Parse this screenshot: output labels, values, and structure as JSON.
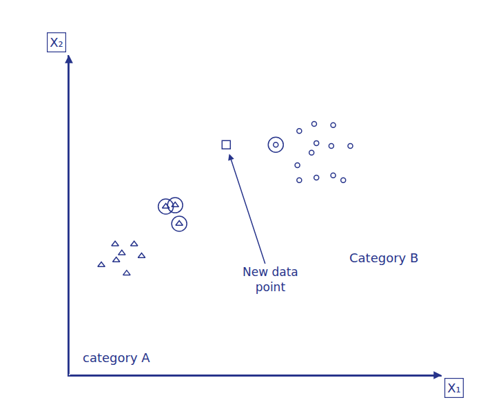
{
  "chart_data": {
    "type": "scatter",
    "xlabel": "X₁",
    "ylabel": "X₂",
    "xlim": [
      0,
      100
    ],
    "ylim": [
      0,
      100
    ],
    "xticks": [],
    "yticks": [],
    "tick_labels": false,
    "grid": false,
    "color": "#27348b",
    "series": [
      {
        "name": "category A",
        "marker": "triangle",
        "x": [
          12.4,
          17.5,
          14.2,
          19.5,
          12.7,
          8.7,
          15.5,
          26.0,
          28.5,
          29.6
        ],
        "values": [
          40.9,
          40.9,
          38.1,
          37.2,
          35.9,
          34.4,
          31.8,
          52.7,
          53.1,
          47.3
        ],
        "circled": [
          false,
          false,
          false,
          false,
          false,
          false,
          false,
          true,
          true,
          true
        ],
        "label_at": [
          12.7,
          5.4
        ]
      },
      {
        "name": "Category B",
        "marker": "circle",
        "x": [
          55.5,
          61.8,
          65.8,
          70.9,
          66.4,
          70.4,
          75.5,
          65.1,
          61.3,
          66.4,
          70.9,
          73.6,
          61.8
        ],
        "values": [
          72.0,
          76.3,
          78.5,
          78.1,
          72.5,
          71.6,
          71.6,
          69.5,
          65.6,
          61.7,
          62.4,
          60.9,
          60.9
        ],
        "circled": [
          true,
          false,
          false,
          false,
          false,
          false,
          false,
          false,
          false,
          false,
          false,
          false,
          false
        ],
        "label_at": [
          84.5,
          36.6
        ]
      },
      {
        "name": "New data point",
        "marker": "square",
        "x": [
          42.2
        ],
        "values": [
          72.0
        ],
        "circled": [
          false
        ],
        "label_at": [
          54.0,
          30.0
        ]
      }
    ]
  }
}
